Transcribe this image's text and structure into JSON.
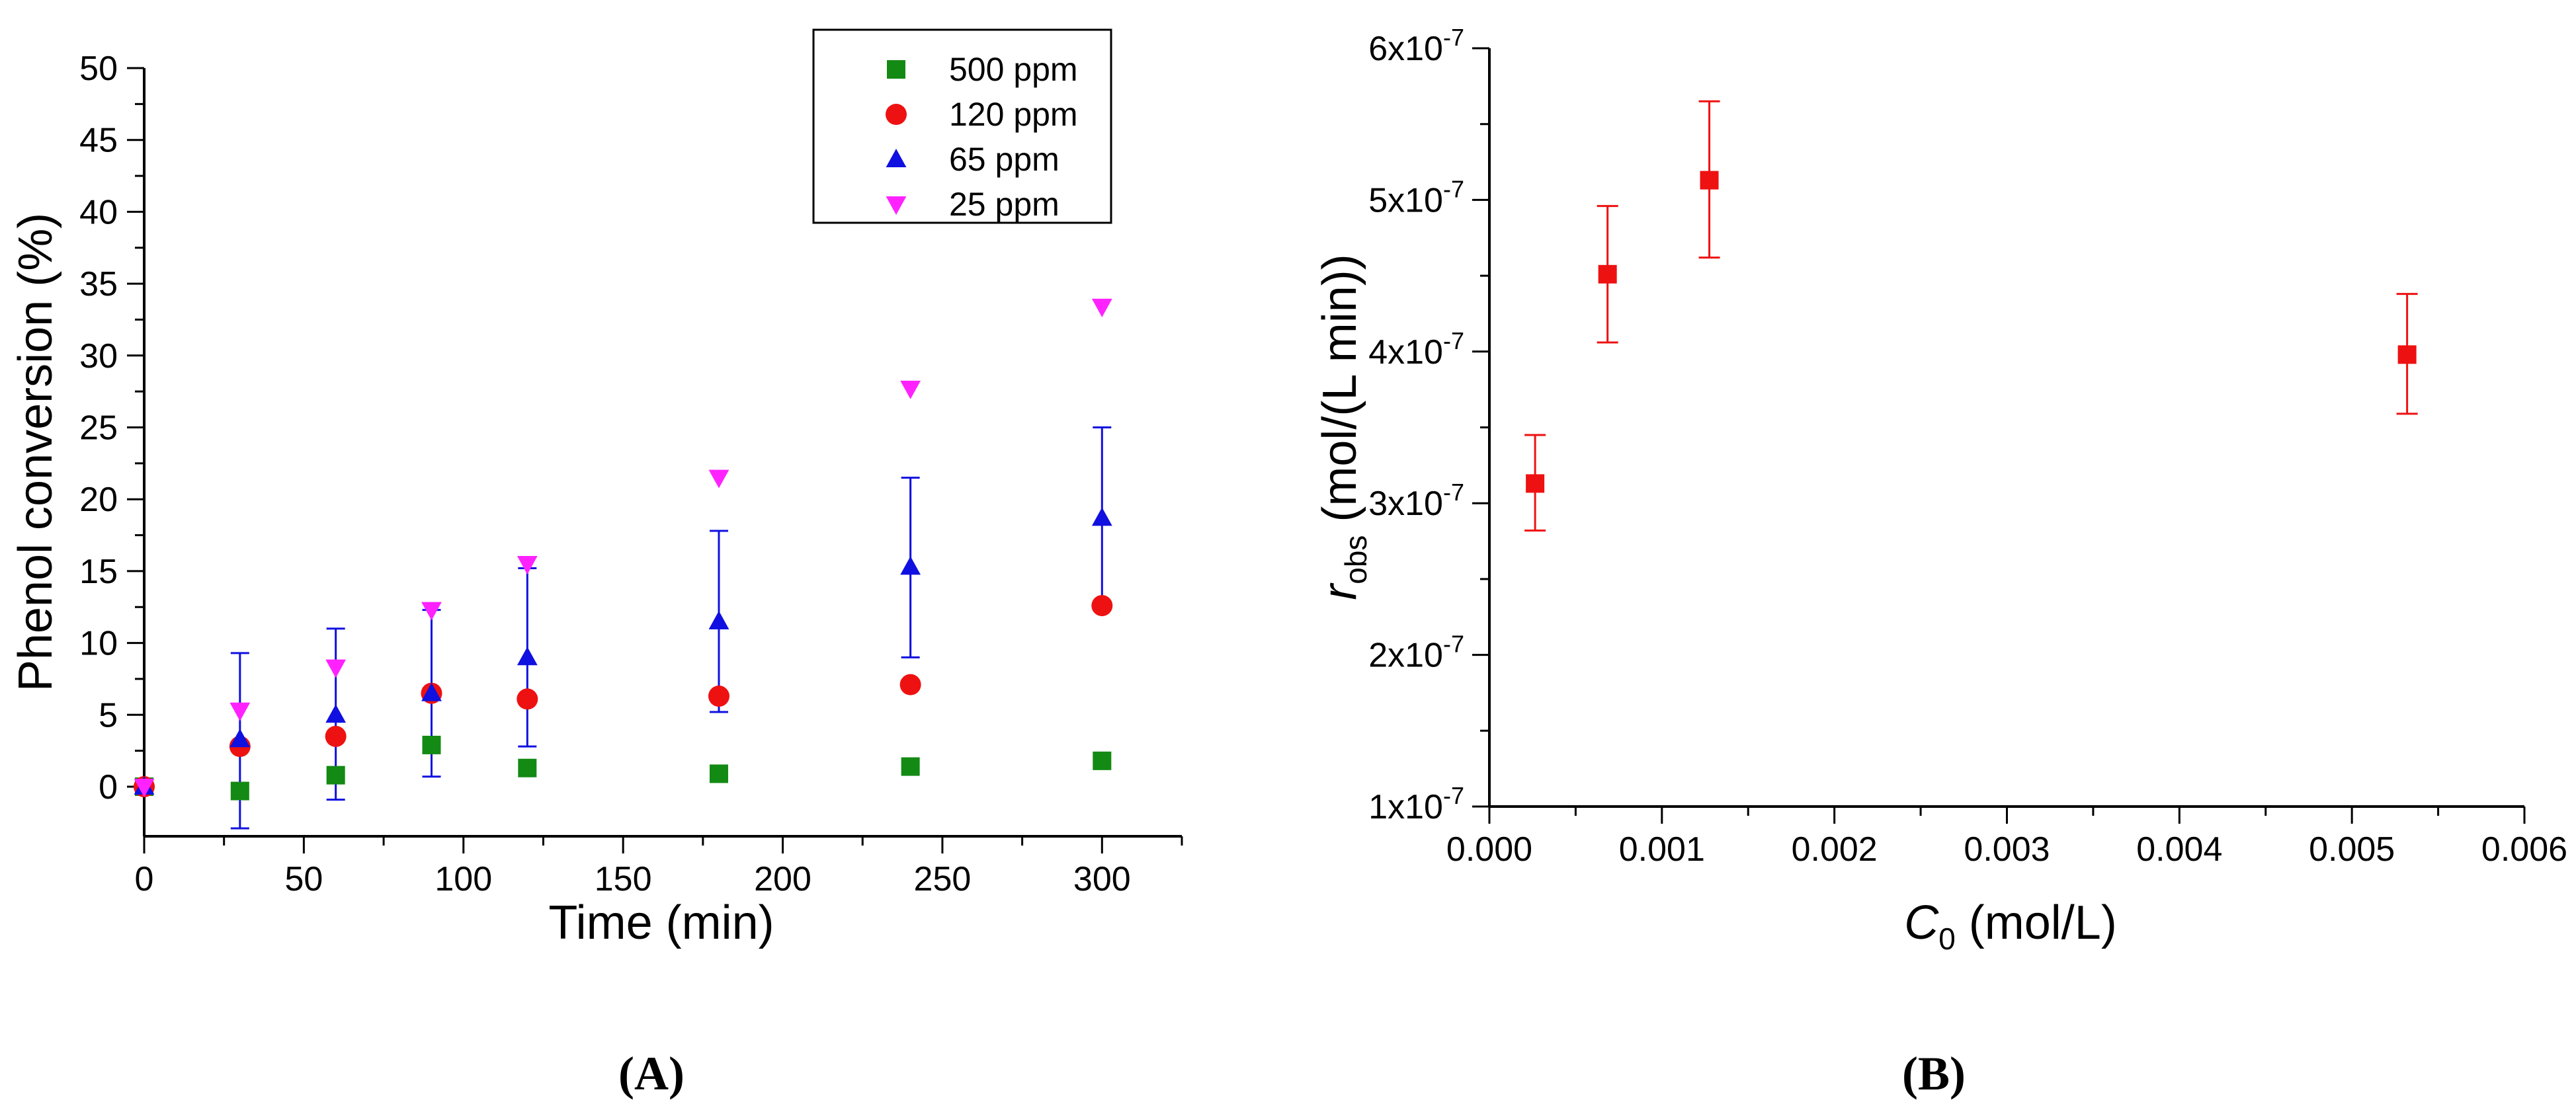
{
  "colors": {
    "500ppm": "#138a13",
    "120ppm": "#ee1111",
    "65ppm": "#1010e0",
    "25ppm": "#ff22ff",
    "panelB": "#ee1111"
  },
  "chart_data": [
    {
      "panel": "A",
      "panel_label": "(A)",
      "type": "scatter",
      "xlabel": "Time (min)",
      "ylabel": "Phenol conversion (%)",
      "xlim": [
        0,
        325
      ],
      "ylim": [
        -3,
        50
      ],
      "x_ticks": [
        0,
        50,
        100,
        150,
        200,
        250,
        300
      ],
      "x_tick_labels": [
        "0",
        "50",
        "100",
        "150",
        "200",
        "250",
        "300"
      ],
      "y_ticks": [
        0,
        5,
        10,
        15,
        20,
        25,
        30,
        35,
        40,
        45,
        50
      ],
      "y_tick_labels": [
        "0",
        "5",
        "10",
        "15",
        "20",
        "25",
        "30",
        "35",
        "40",
        "45",
        "50"
      ],
      "legend_position": "top-right",
      "series": [
        {
          "name": "500 ppm",
          "color": "#138a13",
          "marker": "square",
          "x": [
            0,
            30,
            60,
            90,
            120,
            180,
            240,
            300
          ],
          "y": [
            0,
            -0.3,
            0.8,
            2.9,
            1.3,
            0.9,
            1.4,
            1.8
          ]
        },
        {
          "name": "120 ppm",
          "color": "#ee1111",
          "marker": "circle",
          "x": [
            0,
            30,
            60,
            90,
            120,
            180,
            240,
            300
          ],
          "y": [
            0,
            2.8,
            3.5,
            6.5,
            6.1,
            6.3,
            7.1,
            12.6
          ]
        },
        {
          "name": "65 ppm",
          "color": "#1010e0",
          "marker": "triangle-up",
          "x": [
            0,
            30,
            60,
            90,
            120,
            180,
            240,
            300
          ],
          "y": [
            0,
            3.3,
            5.0,
            6.5,
            9.0,
            11.5,
            15.3,
            18.7
          ],
          "err_low": [
            0,
            -2.9,
            -0.9,
            0.7,
            2.8,
            5.2,
            9.0,
            12.5
          ],
          "err_high": [
            0,
            9.3,
            11.0,
            12.3,
            15.2,
            17.8,
            21.5,
            25.0
          ]
        },
        {
          "name": "25 ppm",
          "color": "#ff22ff",
          "marker": "triangle-down",
          "x": [
            0,
            30,
            60,
            90,
            120,
            180,
            240,
            300
          ],
          "y": [
            0,
            5.3,
            8.3,
            12.3,
            15.5,
            21.5,
            27.7,
            33.4
          ]
        }
      ]
    },
    {
      "panel": "B",
      "panel_label": "(B)",
      "type": "scatter",
      "xlabel_italic": "C",
      "xlabel_sub": "0",
      "xlabel_rest": " (mol/L)",
      "ylabel_italic": "r",
      "ylabel_sub": "obs",
      "ylabel_rest": " (mol/(L min))",
      "xlim": [
        0,
        0.006
      ],
      "ylim": [
        1e-07,
        6e-07
      ],
      "x_ticks": [
        0,
        0.001,
        0.002,
        0.003,
        0.004,
        0.005,
        0.006
      ],
      "x_tick_labels": [
        "0.000",
        "0.001",
        "0.002",
        "0.003",
        "0.004",
        "0.005",
        "0.006"
      ],
      "y_ticks": [
        1e-07,
        2e-07,
        3e-07,
        4e-07,
        5e-07,
        6e-07
      ],
      "y_tick_base": [
        "1x10",
        "2x10",
        "3x10",
        "4x10",
        "5x10",
        "6x10"
      ],
      "y_tick_exp": "-7",
      "series": [
        {
          "name": "r_obs",
          "color": "#ee1111",
          "marker": "square",
          "x": [
            0.000265,
            0.000685,
            0.001275,
            0.00532
          ],
          "y": [
            3.13e-07,
            4.51e-07,
            5.13e-07,
            3.98e-07
          ],
          "err_low": [
            2.82e-07,
            4.06e-07,
            4.62e-07,
            3.59e-07
          ],
          "err_high": [
            3.45e-07,
            4.96e-07,
            5.65e-07,
            4.38e-07
          ]
        }
      ]
    }
  ]
}
